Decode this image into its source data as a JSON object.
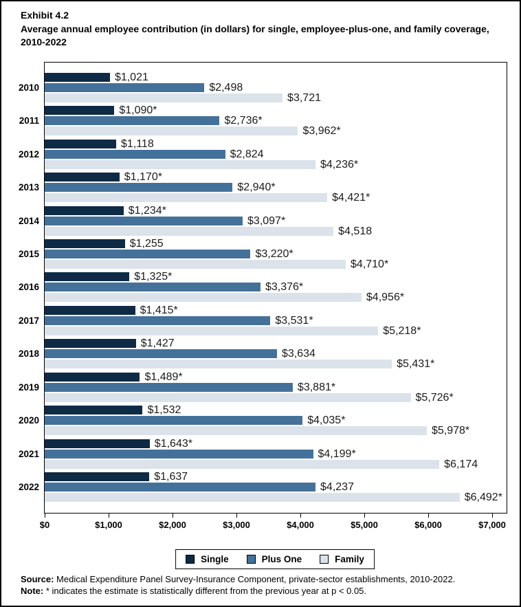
{
  "header": {
    "exhibit_label": "Exhibit 4.2",
    "title": "Average annual employee contribution (in dollars) for single, employee-plus-one, and family coverage, 2010-2022"
  },
  "chart_data": {
    "type": "bar",
    "orientation": "horizontal",
    "title": "Average annual employee contribution (in dollars) for single, employee-plus-one, and family coverage, 2010-2022",
    "categories": [
      "2010",
      "2011",
      "2012",
      "2013",
      "2014",
      "2015",
      "2016",
      "2017",
      "2018",
      "2019",
      "2020",
      "2021",
      "2022"
    ],
    "series": [
      {
        "name": "Single",
        "color": "#0e2a44",
        "values": [
          1021,
          1090,
          1118,
          1170,
          1234,
          1255,
          1325,
          1415,
          1427,
          1489,
          1532,
          1643,
          1637
        ],
        "labels": [
          "$1,021",
          "$1,090*",
          "$1,118",
          "$1,170*",
          "$1,234*",
          "$1,255",
          "$1,325*",
          "$1,415*",
          "$1,427",
          "$1,489*",
          "$1,532",
          "$1,643*",
          "$1,637"
        ]
      },
      {
        "name": "Plus One",
        "color": "#44719a",
        "values": [
          2498,
          2736,
          2824,
          2940,
          3097,
          3220,
          3376,
          3531,
          3634,
          3881,
          4035,
          4199,
          4237
        ],
        "labels": [
          "$2,498",
          "$2,736*",
          "$2,824",
          "$2,940*",
          "$3,097*",
          "$3,220*",
          "$3,376*",
          "$3,531*",
          "$3,634",
          "$3,881*",
          "$4,035*",
          "$4,199*",
          "$4,237"
        ]
      },
      {
        "name": "Family",
        "color": "#dbe2ea",
        "values": [
          3721,
          3962,
          4236,
          4421,
          4518,
          4710,
          4956,
          5218,
          5431,
          5726,
          5978,
          6174,
          6492
        ],
        "labels": [
          "$3,721",
          "$3,962*",
          "$4,236*",
          "$4,421*",
          "$4,518",
          "$4,710*",
          "$4,956*",
          "$5,218*",
          "$5,431*",
          "$5,726*",
          "$5,978*",
          "$6,174",
          "$6,492*"
        ]
      }
    ],
    "xlim": [
      0,
      7000
    ],
    "x_ticks": [
      "$0",
      "$1,000",
      "$2,000",
      "$3,000",
      "$4,000",
      "$5,000",
      "$6,000",
      "$7,000"
    ],
    "xlabel": "",
    "ylabel": "",
    "grid": false,
    "legend_position": "bottom"
  },
  "footer": {
    "source_label": "Source:",
    "source_text": "Medical Expenditure Panel Survey-Insurance Component, private-sector establishments, 2010-2022.",
    "note_label": "Note:",
    "note_text": "* indicates the estimate is statistically different from the previous year at p < 0.05."
  }
}
